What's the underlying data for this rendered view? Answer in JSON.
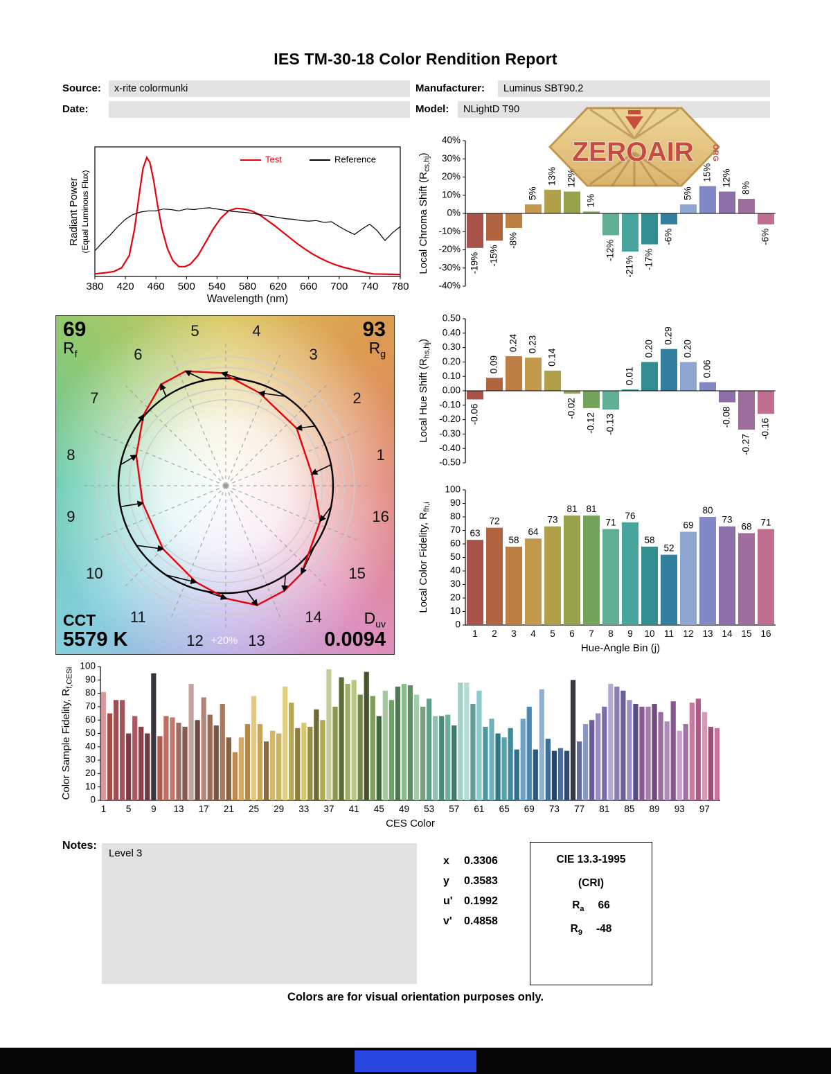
{
  "title": "IES TM-30-18 Color Rendition Report",
  "header": {
    "source_label": "Source:",
    "source": "x-rite colormunki",
    "date_label": "Date:",
    "date": "",
    "manufacturer_label": "Manufacturer:",
    "manufacturer": "Luminus SBT90.2",
    "model_label": "Model:",
    "model": "NLightD T90"
  },
  "logo": {
    "text": "ZEROAIR",
    "suffix": "ORG"
  },
  "hue_bin_colors": [
    "#A8524A",
    "#B2633F",
    "#BD7E44",
    "#C39A4D",
    "#B0A04A",
    "#97A04B",
    "#74A35B",
    "#5FAE95",
    "#48A59E",
    "#338E92",
    "#337E9E",
    "#8FA6D2",
    "#8289C4",
    "#8A6FA8",
    "#9E6E9C",
    "#C06E90"
  ],
  "ces_colors": [
    "#D89A9C",
    "#A84A44",
    "#9E4E55",
    "#A4555C",
    "#7E3C42",
    "#B05660",
    "#8A4046",
    "#6F3A3E",
    "#3A363E",
    "#B05A50",
    "#BE6E62",
    "#C17B6C",
    "#A56B62",
    "#8A5A50",
    "#C4A49A",
    "#6E4A42",
    "#B5847A",
    "#9C6B55",
    "#7D5544",
    "#A8795F",
    "#8A5E3C",
    "#C28A4E",
    "#D9A85C",
    "#B5884A",
    "#E8C87A",
    "#C9A55C",
    "#8A6A3E",
    "#D4B66A",
    "#C9B45C",
    "#E0D080",
    "#B5A84E",
    "#8A7E3A",
    "#D6C96A",
    "#989040",
    "#6E6A32",
    "#B0AA50",
    "#C6CC9A",
    "#8A9A4A",
    "#5C6E35",
    "#9AB060",
    "#B8C87E",
    "#6E8A42",
    "#46532C",
    "#7EA055",
    "#3E6B3E",
    "#A8C9A0",
    "#6E9E6A",
    "#4A7A4E",
    "#8ABB8A",
    "#5E8E62",
    "#A2CCAA",
    "#77A27E",
    "#5E9E8A",
    "#8EC2B2",
    "#4A8A7A",
    "#6EAEA0",
    "#3E7A6E",
    "#9ED2C6",
    "#B2DCD4",
    "#5E9E96",
    "#8ECCD2",
    "#4E98A2",
    "#6EB2BE",
    "#2E7A86",
    "#56A2B2",
    "#3E8A9E",
    "#2E6E8E",
    "#6EA2C6",
    "#4A86B2",
    "#2A5A80",
    "#8EB2D6",
    "#3E6E9A",
    "#24486E",
    "#4A6E9E",
    "#2E4A72",
    "#3A3A44",
    "#5E6EA2",
    "#8A9AC6",
    "#6E5A9E",
    "#9A8AC2",
    "#7E6EAE",
    "#B2A8D6",
    "#8A7AB6",
    "#6E5E9A",
    "#9E92C6",
    "#5A4A86",
    "#8A5A96",
    "#A878AE",
    "#724A7E",
    "#9A6AA2",
    "#B28ABA",
    "#86568E",
    "#C9A2CE",
    "#A070A8",
    "#C67A9E",
    "#B25A86",
    "#D69AB6",
    "#A24A72",
    "#C9729A"
  ],
  "chart_data": [
    {
      "id": "spd",
      "type": "line",
      "xlabel": "Wavelength (nm)",
      "ylabel_line1": "Radiant Power",
      "ylabel_line2": "(Equal Luminous Flux)",
      "xlim": [
        380,
        780
      ],
      "xticks": [
        380,
        420,
        460,
        500,
        540,
        580,
        620,
        660,
        700,
        740,
        780
      ],
      "series": [
        {
          "name": "Test",
          "color": "#e8000b",
          "x": [
            380,
            395,
            405,
            415,
            425,
            432,
            438,
            443,
            448,
            452,
            457,
            462,
            468,
            475,
            482,
            490,
            498,
            505,
            515,
            525,
            535,
            545,
            555,
            565,
            575,
            585,
            595,
            605,
            615,
            625,
            635,
            645,
            655,
            665,
            675,
            685,
            695,
            705,
            715,
            725,
            735,
            745,
            780
          ],
          "y": [
            0.01,
            0.02,
            0.03,
            0.06,
            0.16,
            0.38,
            0.66,
            0.88,
            0.97,
            0.93,
            0.78,
            0.58,
            0.38,
            0.22,
            0.12,
            0.07,
            0.07,
            0.09,
            0.16,
            0.27,
            0.38,
            0.47,
            0.53,
            0.55,
            0.545,
            0.53,
            0.5,
            0.455,
            0.41,
            0.36,
            0.31,
            0.26,
            0.215,
            0.175,
            0.14,
            0.11,
            0.085,
            0.065,
            0.05,
            0.035,
            0.02,
            0.01,
            0.005
          ]
        },
        {
          "name": "Reference",
          "color": "#000000",
          "x": [
            380,
            390,
            400,
            410,
            420,
            430,
            440,
            450,
            460,
            470,
            480,
            490,
            500,
            510,
            520,
            530,
            540,
            550,
            560,
            570,
            580,
            590,
            600,
            610,
            620,
            630,
            640,
            650,
            660,
            670,
            680,
            690,
            700,
            710,
            720,
            730,
            740,
            750,
            760,
            770,
            780
          ],
          "y": [
            0.2,
            0.27,
            0.33,
            0.4,
            0.46,
            0.5,
            0.52,
            0.53,
            0.53,
            0.545,
            0.54,
            0.53,
            0.545,
            0.54,
            0.55,
            0.555,
            0.545,
            0.535,
            0.525,
            0.52,
            0.515,
            0.505,
            0.495,
            0.485,
            0.475,
            0.465,
            0.46,
            0.45,
            0.445,
            0.45,
            0.435,
            0.44,
            0.4,
            0.365,
            0.335,
            0.38,
            0.42,
            0.365,
            0.285,
            0.35,
            0.4
          ]
        }
      ]
    },
    {
      "id": "chroma_shift",
      "type": "bar",
      "ylabel": {
        "pre": "Local Chroma Shift (R",
        "sub": "cs,hj",
        "post": ")"
      },
      "ylim": [
        -40,
        40
      ],
      "yticks": [
        "40%",
        "30%",
        "20%",
        "10%",
        "0%",
        "-10%",
        "-20%",
        "-30%",
        "-40%"
      ],
      "values": [
        -19,
        -15,
        -8,
        5,
        13,
        12,
        1,
        -12,
        -21,
        -17,
        -6,
        5,
        15,
        12,
        8,
        -6
      ],
      "labels": [
        "-19%",
        "-15%",
        "-8%",
        "5%",
        "13%",
        "12%",
        "1%",
        "-12%",
        "-21%",
        "-17%",
        "-6%",
        "5%",
        "15%",
        "12%",
        "8%",
        "-6%"
      ]
    },
    {
      "id": "hue_shift",
      "type": "bar",
      "ylabel": {
        "pre": "Local Hue Shift (R",
        "sub": "hs,hj",
        "post": ")"
      },
      "ylim": [
        -0.5,
        0.5
      ],
      "yticks": [
        "0.50",
        "0.40",
        "0.30",
        "0.20",
        "0.10",
        "0.00",
        "-0.10",
        "-0.20",
        "-0.30",
        "-0.40",
        "-0.50"
      ],
      "values": [
        -0.06,
        0.09,
        0.24,
        0.23,
        0.14,
        -0.02,
        -0.12,
        -0.13,
        0.01,
        0.2,
        0.29,
        0.2,
        0.06,
        -0.08,
        -0.27,
        -0.16
      ],
      "labels": [
        "-0.06",
        "0.09",
        "0.24",
        "0.23",
        "0.14",
        "-0.02",
        "-0.12",
        "-0.13",
        "0.01",
        "0.20",
        "0.29",
        "0.20",
        "0.06",
        "-0.08",
        "-0.27",
        "-0.16"
      ]
    },
    {
      "id": "local_fidelity",
      "type": "bar",
      "ylabel": {
        "pre": "Local Color Fidelity, R",
        "sub": "fh,i",
        "post": ""
      },
      "xlabel": "Hue-Angle Bin (j)",
      "ylim": [
        0,
        100
      ],
      "yticks": [
        "100",
        "90",
        "80",
        "70",
        "60",
        "50",
        "40",
        "30",
        "20",
        "10",
        "0"
      ],
      "xticks": [
        1,
        2,
        3,
        4,
        5,
        6,
        7,
        8,
        9,
        10,
        11,
        12,
        13,
        14,
        15,
        16
      ],
      "values": [
        63,
        72,
        58,
        64,
        73,
        81,
        81,
        71,
        76,
        58,
        52,
        69,
        80,
        73,
        68,
        71
      ]
    },
    {
      "id": "ces_fidelity",
      "type": "bar",
      "ylabel": {
        "pre": "Color Sample Fidelity, R",
        "sub": "f,CESi",
        "post": ""
      },
      "xlabel": "CES Color",
      "ylim": [
        0,
        100
      ],
      "yticks": [
        "100",
        "90",
        "80",
        "70",
        "60",
        "50",
        "40",
        "30",
        "20",
        "10",
        "0"
      ],
      "xticks": [
        1,
        5,
        9,
        13,
        17,
        21,
        25,
        29,
        33,
        37,
        41,
        45,
        49,
        53,
        57,
        61,
        65,
        69,
        73,
        77,
        81,
        85,
        89,
        93,
        97
      ],
      "values": [
        81,
        65,
        75,
        75,
        50,
        63,
        55,
        50,
        95,
        48,
        63,
        62,
        58,
        55,
        87,
        60,
        77,
        64,
        56,
        72,
        47,
        36,
        47,
        57,
        78,
        57,
        44,
        52,
        50,
        85,
        73,
        54,
        58,
        55,
        68,
        60,
        98,
        70,
        92,
        87,
        90,
        79,
        96,
        78,
        63,
        82,
        75,
        85,
        87,
        86,
        79,
        70,
        76,
        63,
        63,
        64,
        56,
        88,
        88,
        72,
        82,
        55,
        61,
        50,
        47,
        54,
        38,
        61,
        70,
        38,
        83,
        46,
        37,
        39,
        37,
        90,
        44,
        57,
        60,
        65,
        70,
        87,
        85,
        82,
        75,
        72,
        70,
        70,
        72,
        66,
        59,
        74,
        52,
        57,
        73,
        76,
        66,
        55,
        54
      ]
    }
  ],
  "cvg": {
    "rf": "69",
    "rf_base": "R",
    "rf_sub": "f",
    "rg": "93",
    "rg_base": "R",
    "rg_sub": "g",
    "cct_label": "CCT",
    "cct_value": "5579 K",
    "duv_base": "D",
    "duv_sub": "uv",
    "duv_value": "0.0094",
    "ring_label": "+20%",
    "bin_numbers": [
      1,
      2,
      3,
      4,
      5,
      6,
      7,
      8,
      9,
      10,
      11,
      12,
      13,
      14,
      15,
      16
    ],
    "chroma_shift": [
      -0.19,
      -0.15,
      -0.08,
      0.05,
      0.13,
      0.12,
      0.01,
      -0.12,
      -0.21,
      -0.17,
      -0.06,
      0.05,
      0.15,
      0.12,
      0.08,
      -0.06
    ],
    "hue_shift": [
      -0.06,
      0.09,
      0.24,
      0.23,
      0.14,
      -0.02,
      -0.12,
      -0.13,
      0.01,
      0.2,
      0.29,
      0.2,
      0.06,
      -0.08,
      -0.27,
      -0.16
    ]
  },
  "notes": {
    "label": "Notes:",
    "text": "Level 3"
  },
  "chromaticity": {
    "rows": [
      {
        "label": "x",
        "value": "0.3306"
      },
      {
        "label": "y",
        "value": "0.3583"
      },
      {
        "label": "u'",
        "value": "0.1992"
      },
      {
        "label": "v'",
        "value": "0.4858"
      }
    ]
  },
  "cie": {
    "title": "CIE 13.3-1995",
    "subtitle": "(CRI)",
    "rows": [
      {
        "base": "R",
        "sub": "a",
        "value": "66"
      },
      {
        "base": "R",
        "sub": "9",
        "value": "-48"
      }
    ]
  },
  "footer": "Colors are for visual orientation purposes only."
}
